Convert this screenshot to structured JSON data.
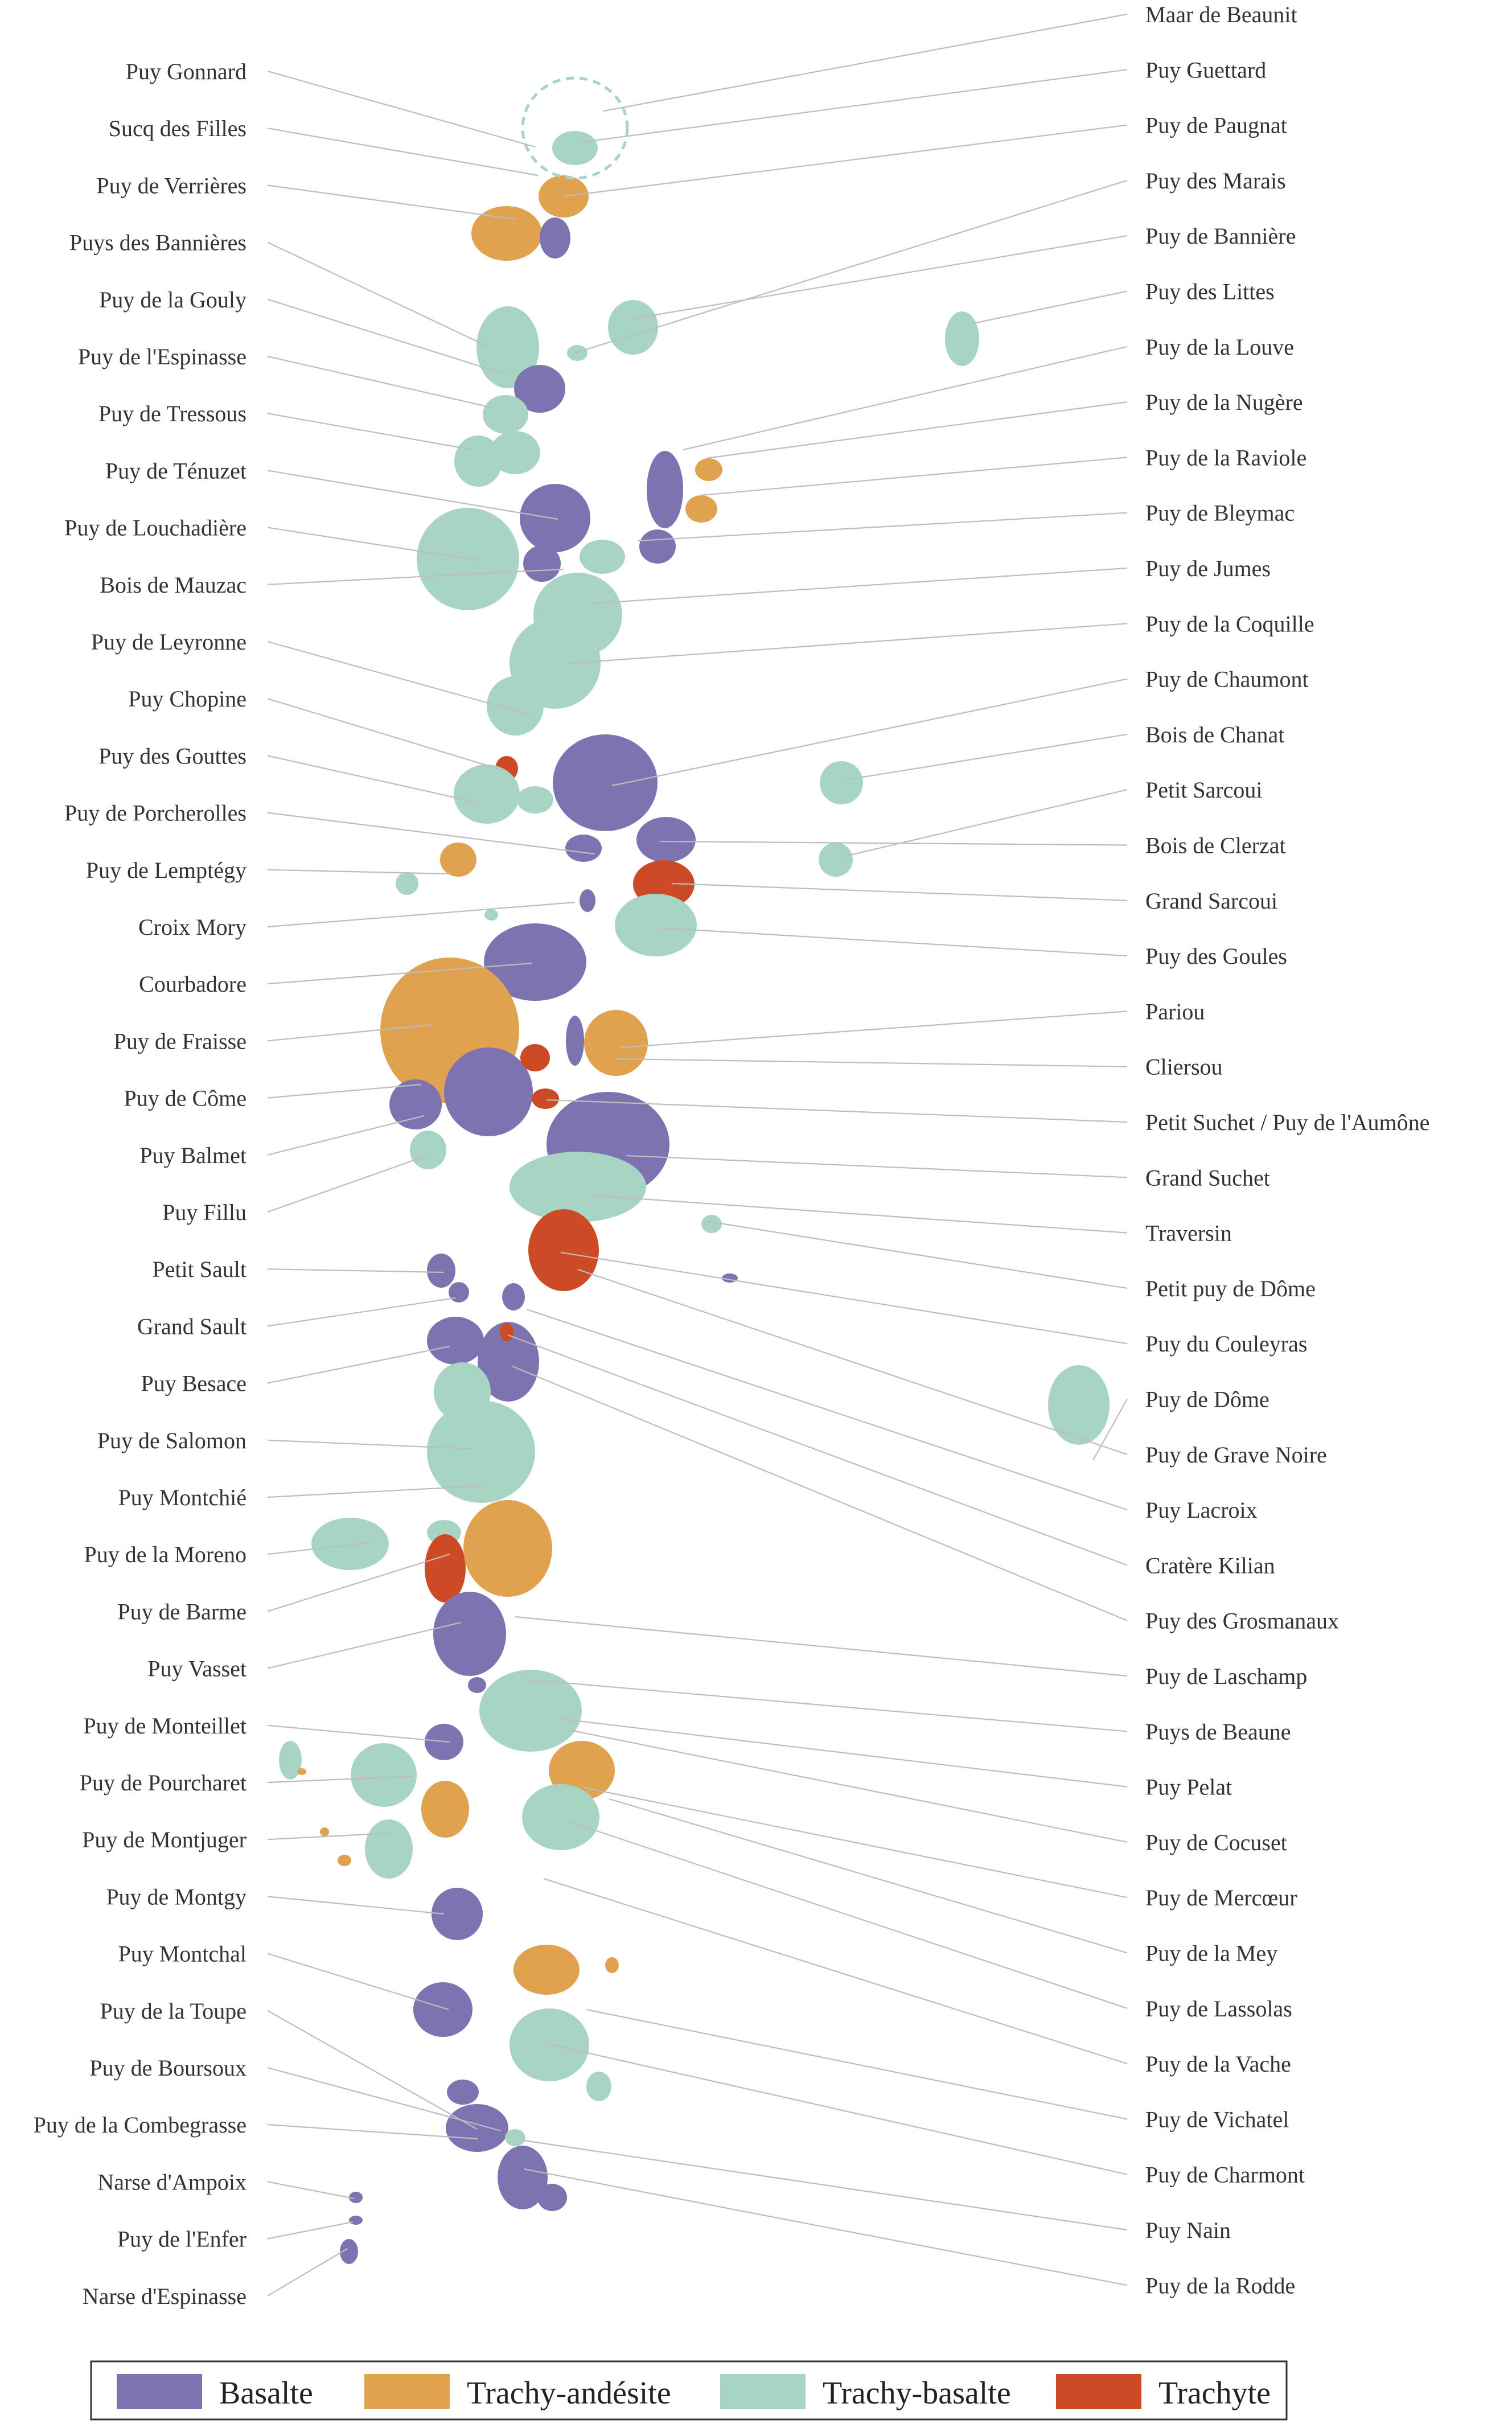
{
  "colors": {
    "basalte": "#7d73b0",
    "trachy_andesite": "#e0a24f",
    "trachy_basalte": "#a8d5c3",
    "trachyte": "#cc4a24",
    "leader": "#bdbdbd",
    "text": "#333333"
  },
  "labels_left": [
    "Puy Gonnard",
    "Sucq des Filles",
    "Puy de Verrières",
    "Puys des Bannières",
    "Puy de la Gouly",
    "Puy de l'Espinasse",
    "Puy de Tressous",
    "Puy de Ténuzet",
    "Puy de Louchadière",
    "Bois de Mauzac",
    "Puy de Leyronne",
    "Puy Chopine",
    "Puy des Gouttes",
    "Puy de Porcherolles",
    "Puy de Lemptégy",
    "Croix Mory",
    "Courbadore",
    "Puy de Fraisse",
    "Puy de Côme",
    "Puy Balmet",
    "Puy Fillu",
    "Petit Sault",
    "Grand Sault",
    "Puy Besace",
    "Puy de Salomon",
    "Puy Montchié",
    "Puy de la Moreno",
    "Puy de Barme",
    "Puy Vasset",
    "Puy de Monteillet",
    "Puy de Pourcharet",
    "Puy de Montjuger",
    "Puy de Montgy",
    "Puy Montchal",
    "Puy de la Toupe",
    "Puy de Boursoux",
    "Puy de la Combegrasse",
    "Narse d'Ampoix",
    "Puy de l'Enfer",
    "Narse d'Espinasse"
  ],
  "labels_right": [
    "Maar de Beaunit",
    "Puy Guettard",
    "Puy de Paugnat",
    "Puy des Marais",
    "Puy de Bannière",
    "Puy des Littes",
    "Puy de la Louve",
    "Puy de la Nugère",
    "Puy de la Raviole",
    "Puy de Bleymac",
    "Puy de Jumes",
    "Puy de la Coquille",
    "Puy de Chaumont",
    "Bois de Chanat",
    "Petit Sarcoui",
    "Bois de Clerzat",
    "Grand Sarcoui",
    "Puy des Goules",
    "Pariou",
    "Cliersou",
    "Petit Suchet / Puy de l'Aumône",
    "Grand Suchet",
    "Traversin",
    "Petit puy de Dôme",
    "Puy du Couleyras",
    "Puy de Dôme",
    "Puy de Grave Noire",
    "Puy Lacroix",
    "Cratère Kilian",
    "Puy des Grosmanaux",
    "Puy de Laschamp",
    "Puys de Beaune",
    "Puy Pelat",
    "Puy de Cocuset",
    "Puy de Mercœur",
    "Puy de la Mey",
    "Puy de Lassolas",
    "Puy de la Vache",
    "Puy de Vichatel",
    "Puy de Charmont",
    "Puy Nain",
    "Puy de la Rodde"
  ],
  "legend": [
    {
      "label": "Basalte",
      "color": "#7d73b0"
    },
    {
      "label": "Trachy-andésite",
      "color": "#e0a24f"
    },
    {
      "label": "Trachy-basalte",
      "color": "#a8d5c3"
    },
    {
      "label": "Trachyte",
      "color": "#cc4a24"
    }
  ]
}
